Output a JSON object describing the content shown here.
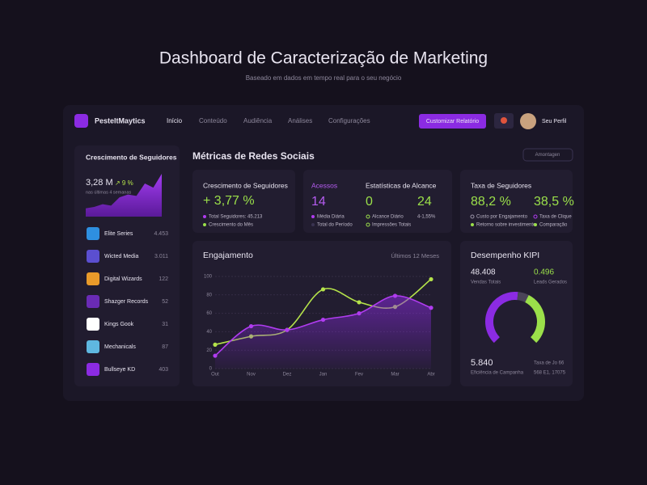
{
  "header": {
    "title": "Dashboard de Caracterização de Marketing",
    "subtitle": "Baseado em dados em tempo real para o seu negócio"
  },
  "nav": {
    "brand": "PesteltMaytics",
    "items": [
      "Início",
      "Conteúdo",
      "Audiência",
      "Análises",
      "Configurações"
    ],
    "button": "Customizar Relatório",
    "profile": "Seu Perfil"
  },
  "sidebar": {
    "title": "Crescimento de Seguidores",
    "value": "3,28 M",
    "change": "↗ 9 %",
    "note": "nas últimas 4 semanas",
    "items": [
      {
        "name": "Elite Series",
        "value": "4.453"
      },
      {
        "name": "Wicted Media",
        "value": "3.011"
      },
      {
        "name": "Digital Wizards",
        "value": "122"
      },
      {
        "name": "Shazger Records",
        "value": "52"
      },
      {
        "name": "Kings Gook",
        "value": "31"
      },
      {
        "name": "Mechanicals",
        "value": "87"
      },
      {
        "name": "Bullseye KD",
        "value": "403"
      }
    ]
  },
  "section": {
    "title": "Métricas de Redes Sociais",
    "filter": "Amontagen"
  },
  "card1": {
    "title": "Crescimento de Seguidores",
    "value": "+ 3,77 %",
    "legend": [
      "Total Seguidores: 45.213",
      "Crescimento do Mês"
    ]
  },
  "card2": {
    "tab": "Acessos",
    "title": "Estatísticas de Alcance",
    "values": [
      "14",
      "0",
      "24"
    ],
    "legend": [
      "Média Diária",
      "Total do Período",
      "Alcance Diário",
      "Impressões Totais",
      "4-1,55%"
    ]
  },
  "card3": {
    "title": "Taxa de Seguidores",
    "values": [
      "88,2 %",
      "38,5 %"
    ],
    "legend": [
      "Custo por Engajamento",
      "Taxa de Clique",
      "Retorno sobre investimento",
      "Comparação"
    ]
  },
  "engagement": {
    "title": "Engajamento",
    "period": "Últimos 12 Meses"
  },
  "kpi": {
    "title": "Desempenho KIPI",
    "stats": [
      {
        "value": "48.408",
        "label": "Vendas Totais"
      },
      {
        "value": "0.496",
        "label": "Leads Gerados"
      },
      {
        "value": "5.840",
        "label": "Eficiência de Campanha"
      },
      {
        "value": "Taxa de Jo 66",
        "label": "568 E1, 17075"
      }
    ]
  },
  "chart_data": [
    {
      "type": "area",
      "values": [
        12,
        14,
        18,
        16,
        28,
        32,
        30,
        48,
        42,
        62
      ],
      "color": "#8b2be2"
    },
    {
      "type": "line",
      "categories": [
        "Out",
        "Nov",
        "Dez",
        "Jan",
        "Fev",
        "Mar",
        "Abr"
      ],
      "series": [
        {
          "color": "#b5e34a",
          "values": [
            26,
            35,
            42,
            86,
            72,
            67,
            97
          ]
        },
        {
          "color": "#b03cf0",
          "values": [
            14,
            46,
            42,
            53,
            60,
            79,
            66
          ]
        }
      ],
      "ylim": [
        0,
        100
      ],
      "yticks": [
        0,
        20,
        40,
        60,
        80,
        100
      ],
      "grid": true
    },
    {
      "type": "donut",
      "values": [
        52,
        8,
        40
      ],
      "colors": [
        "#8b2be2",
        "#4a4458",
        "#9be04a"
      ]
    }
  ]
}
